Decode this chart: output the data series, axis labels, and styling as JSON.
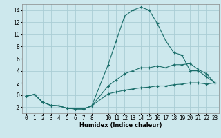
{
  "xlabel": "Humidex (Indice chaleur)",
  "background_color": "#cde8ed",
  "grid_color": "#aacdd5",
  "line_color": "#1a6e6a",
  "x_ticks": [
    0,
    1,
    2,
    3,
    4,
    5,
    6,
    7,
    8,
    10,
    11,
    12,
    13,
    14,
    15,
    16,
    17,
    18,
    19,
    20,
    21,
    22,
    23
  ],
  "ylim": [
    -3,
    15
  ],
  "xlim": [
    -0.5,
    23.5
  ],
  "lines": [
    {
      "x": [
        0,
        1,
        2,
        3,
        4,
        5,
        6,
        7,
        8,
        10,
        11,
        12,
        13,
        14,
        15,
        16,
        17,
        18,
        19,
        20,
        21,
        22,
        23
      ],
      "y": [
        -0.2,
        0.1,
        -1.2,
        -1.7,
        -1.8,
        -2.2,
        -2.3,
        -2.3,
        -1.8,
        5.0,
        9.0,
        13.0,
        14.0,
        14.5,
        14.0,
        11.8,
        9.0,
        7.0,
        6.6,
        4.0,
        4.0,
        3.0,
        2.0
      ]
    },
    {
      "x": [
        0,
        1,
        2,
        3,
        4,
        5,
        6,
        7,
        8,
        10,
        11,
        12,
        13,
        14,
        15,
        16,
        17,
        18,
        19,
        20,
        21,
        22,
        23
      ],
      "y": [
        -0.2,
        0.1,
        -1.2,
        -1.7,
        -1.8,
        -2.2,
        -2.3,
        -2.3,
        -1.8,
        1.5,
        2.5,
        3.5,
        4.0,
        4.5,
        4.5,
        4.8,
        4.5,
        5.0,
        5.0,
        5.2,
        4.2,
        3.5,
        2.0
      ]
    },
    {
      "x": [
        0,
        1,
        2,
        3,
        4,
        5,
        6,
        7,
        8,
        10,
        11,
        12,
        13,
        14,
        15,
        16,
        17,
        18,
        19,
        20,
        21,
        22,
        23
      ],
      "y": [
        -0.2,
        0.1,
        -1.2,
        -1.7,
        -1.8,
        -2.2,
        -2.3,
        -2.3,
        -1.8,
        0.2,
        0.5,
        0.8,
        1.0,
        1.2,
        1.3,
        1.5,
        1.5,
        1.7,
        1.8,
        2.0,
        2.0,
        1.8,
        2.0
      ]
    }
  ]
}
